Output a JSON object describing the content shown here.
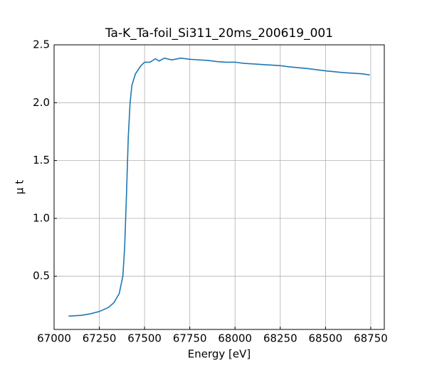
{
  "chart_data": {
    "type": "line",
    "title": "Ta-K_Ta-foil_Si311_20ms_200619_001",
    "xlabel": "Energy [eV]",
    "ylabel": "μ t",
    "xlim": [
      67000,
      68825
    ],
    "ylim": [
      0.04,
      2.5
    ],
    "xticks": [
      67000,
      67250,
      67500,
      67750,
      68000,
      68250,
      68500,
      68750
    ],
    "yticks": [
      0.5,
      {
        "value": 1,
        "label": "1.0"
      },
      1.5,
      {
        "value": 2,
        "label": "2.0"
      },
      2.5
    ],
    "grid": true,
    "series": [
      {
        "color": "#1f77b4",
        "x": [
          67080,
          67150,
          67200,
          67250,
          67300,
          67330,
          67360,
          67380,
          67390,
          67400,
          67410,
          67420,
          67430,
          67450,
          67480,
          67500,
          67530,
          67560,
          67580,
          67610,
          67650,
          67700,
          67750,
          67800,
          67850,
          67900,
          67950,
          68000,
          68050,
          68100,
          68150,
          68200,
          68250,
          68300,
          68400,
          68500,
          68600,
          68700,
          68745
        ],
        "values": [
          0.155,
          0.162,
          0.175,
          0.195,
          0.23,
          0.27,
          0.35,
          0.5,
          0.75,
          1.2,
          1.7,
          2.0,
          2.15,
          2.25,
          2.32,
          2.35,
          2.35,
          2.38,
          2.36,
          2.385,
          2.37,
          2.385,
          2.375,
          2.37,
          2.365,
          2.355,
          2.35,
          2.35,
          2.34,
          2.335,
          2.33,
          2.325,
          2.32,
          2.31,
          2.295,
          2.275,
          2.26,
          2.25,
          2.24
        ]
      }
    ]
  }
}
